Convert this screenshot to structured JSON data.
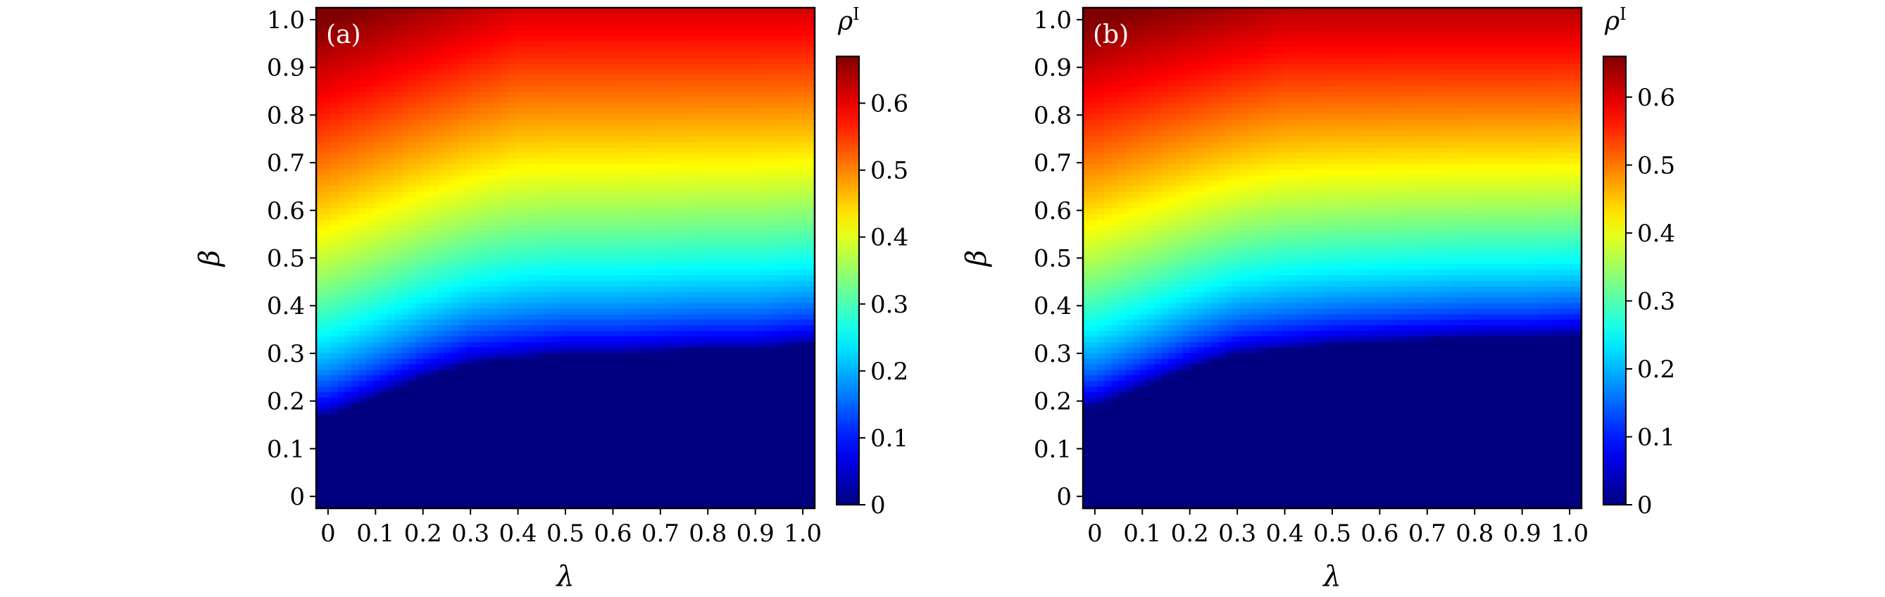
{
  "chart_data": [
    {
      "type": "heatmap",
      "panel_label": "(a)",
      "xlabel": "λ",
      "ylabel": "β",
      "xlim": [
        -0.025,
        1.025
      ],
      "ylim": [
        -0.025,
        1.025
      ],
      "x_ticks": [
        0,
        0.1,
        0.2,
        0.3,
        0.4,
        0.5,
        0.6,
        0.7,
        0.8,
        0.9,
        1.0
      ],
      "x_tick_labels": [
        "0",
        "0.1",
        "0.2",
        "0.3",
        "0.4",
        "0.5",
        "0.6",
        "0.7",
        "0.8",
        "0.9",
        "1.0"
      ],
      "y_ticks": [
        0,
        0.1,
        0.2,
        0.3,
        0.4,
        0.5,
        0.6,
        0.7,
        0.8,
        0.9,
        1.0
      ],
      "y_tick_labels": [
        "0",
        "0.1",
        "0.2",
        "0.3",
        "0.4",
        "0.5",
        "0.6",
        "0.7",
        "0.8",
        "0.9",
        "1.0"
      ],
      "colormap": "jet",
      "colorbar": {
        "label_base": "ρ",
        "label_sup": "I",
        "vmin": 0,
        "vmax": 0.67,
        "ticks": [
          0,
          0.1,
          0.2,
          0.3,
          0.4,
          0.5,
          0.6
        ],
        "tick_labels": [
          "0",
          "0.1",
          "0.2",
          "0.3",
          "0.4",
          "0.5",
          "0.6"
        ]
      },
      "threshold_curve": {
        "lambda": [
          0,
          0.1,
          0.2,
          0.3,
          0.4,
          0.5,
          0.6,
          0.7,
          0.8,
          0.9,
          1.0
        ],
        "beta": [
          0.17,
          0.21,
          0.25,
          0.28,
          0.29,
          0.3,
          0.3,
          0.305,
          0.31,
          0.31,
          0.32
        ]
      },
      "top_value": 0.67,
      "top_value_high_lambda": 0.6
    },
    {
      "type": "heatmap",
      "panel_label": "(b)",
      "xlabel": "λ",
      "ylabel": "β",
      "xlim": [
        -0.025,
        1.025
      ],
      "ylim": [
        -0.025,
        1.025
      ],
      "x_ticks": [
        0,
        0.1,
        0.2,
        0.3,
        0.4,
        0.5,
        0.6,
        0.7,
        0.8,
        0.9,
        1.0
      ],
      "x_tick_labels": [
        "0",
        "0.1",
        "0.2",
        "0.3",
        "0.4",
        "0.5",
        "0.6",
        "0.7",
        "0.8",
        "0.9",
        "1.0"
      ],
      "y_ticks": [
        0,
        0.1,
        0.2,
        0.3,
        0.4,
        0.5,
        0.6,
        0.7,
        0.8,
        0.9,
        1.0
      ],
      "y_tick_labels": [
        "0",
        "0.1",
        "0.2",
        "0.3",
        "0.4",
        "0.5",
        "0.6",
        "0.7",
        "0.8",
        "0.9",
        "1.0"
      ],
      "colormap": "jet",
      "colorbar": {
        "label_base": "ρ",
        "label_sup": "I",
        "vmin": 0,
        "vmax": 0.66,
        "ticks": [
          0,
          0.1,
          0.2,
          0.3,
          0.4,
          0.5,
          0.6
        ],
        "tick_labels": [
          "0",
          "0.1",
          "0.2",
          "0.3",
          "0.4",
          "0.5",
          "0.6"
        ]
      },
      "threshold_curve": {
        "lambda": [
          0,
          0.1,
          0.2,
          0.3,
          0.4,
          0.5,
          0.6,
          0.7,
          0.8,
          0.9,
          1.0
        ],
        "beta": [
          0.19,
          0.23,
          0.27,
          0.3,
          0.31,
          0.32,
          0.325,
          0.33,
          0.335,
          0.335,
          0.34
        ]
      },
      "top_value": 0.66,
      "top_value_high_lambda": 0.61
    }
  ]
}
